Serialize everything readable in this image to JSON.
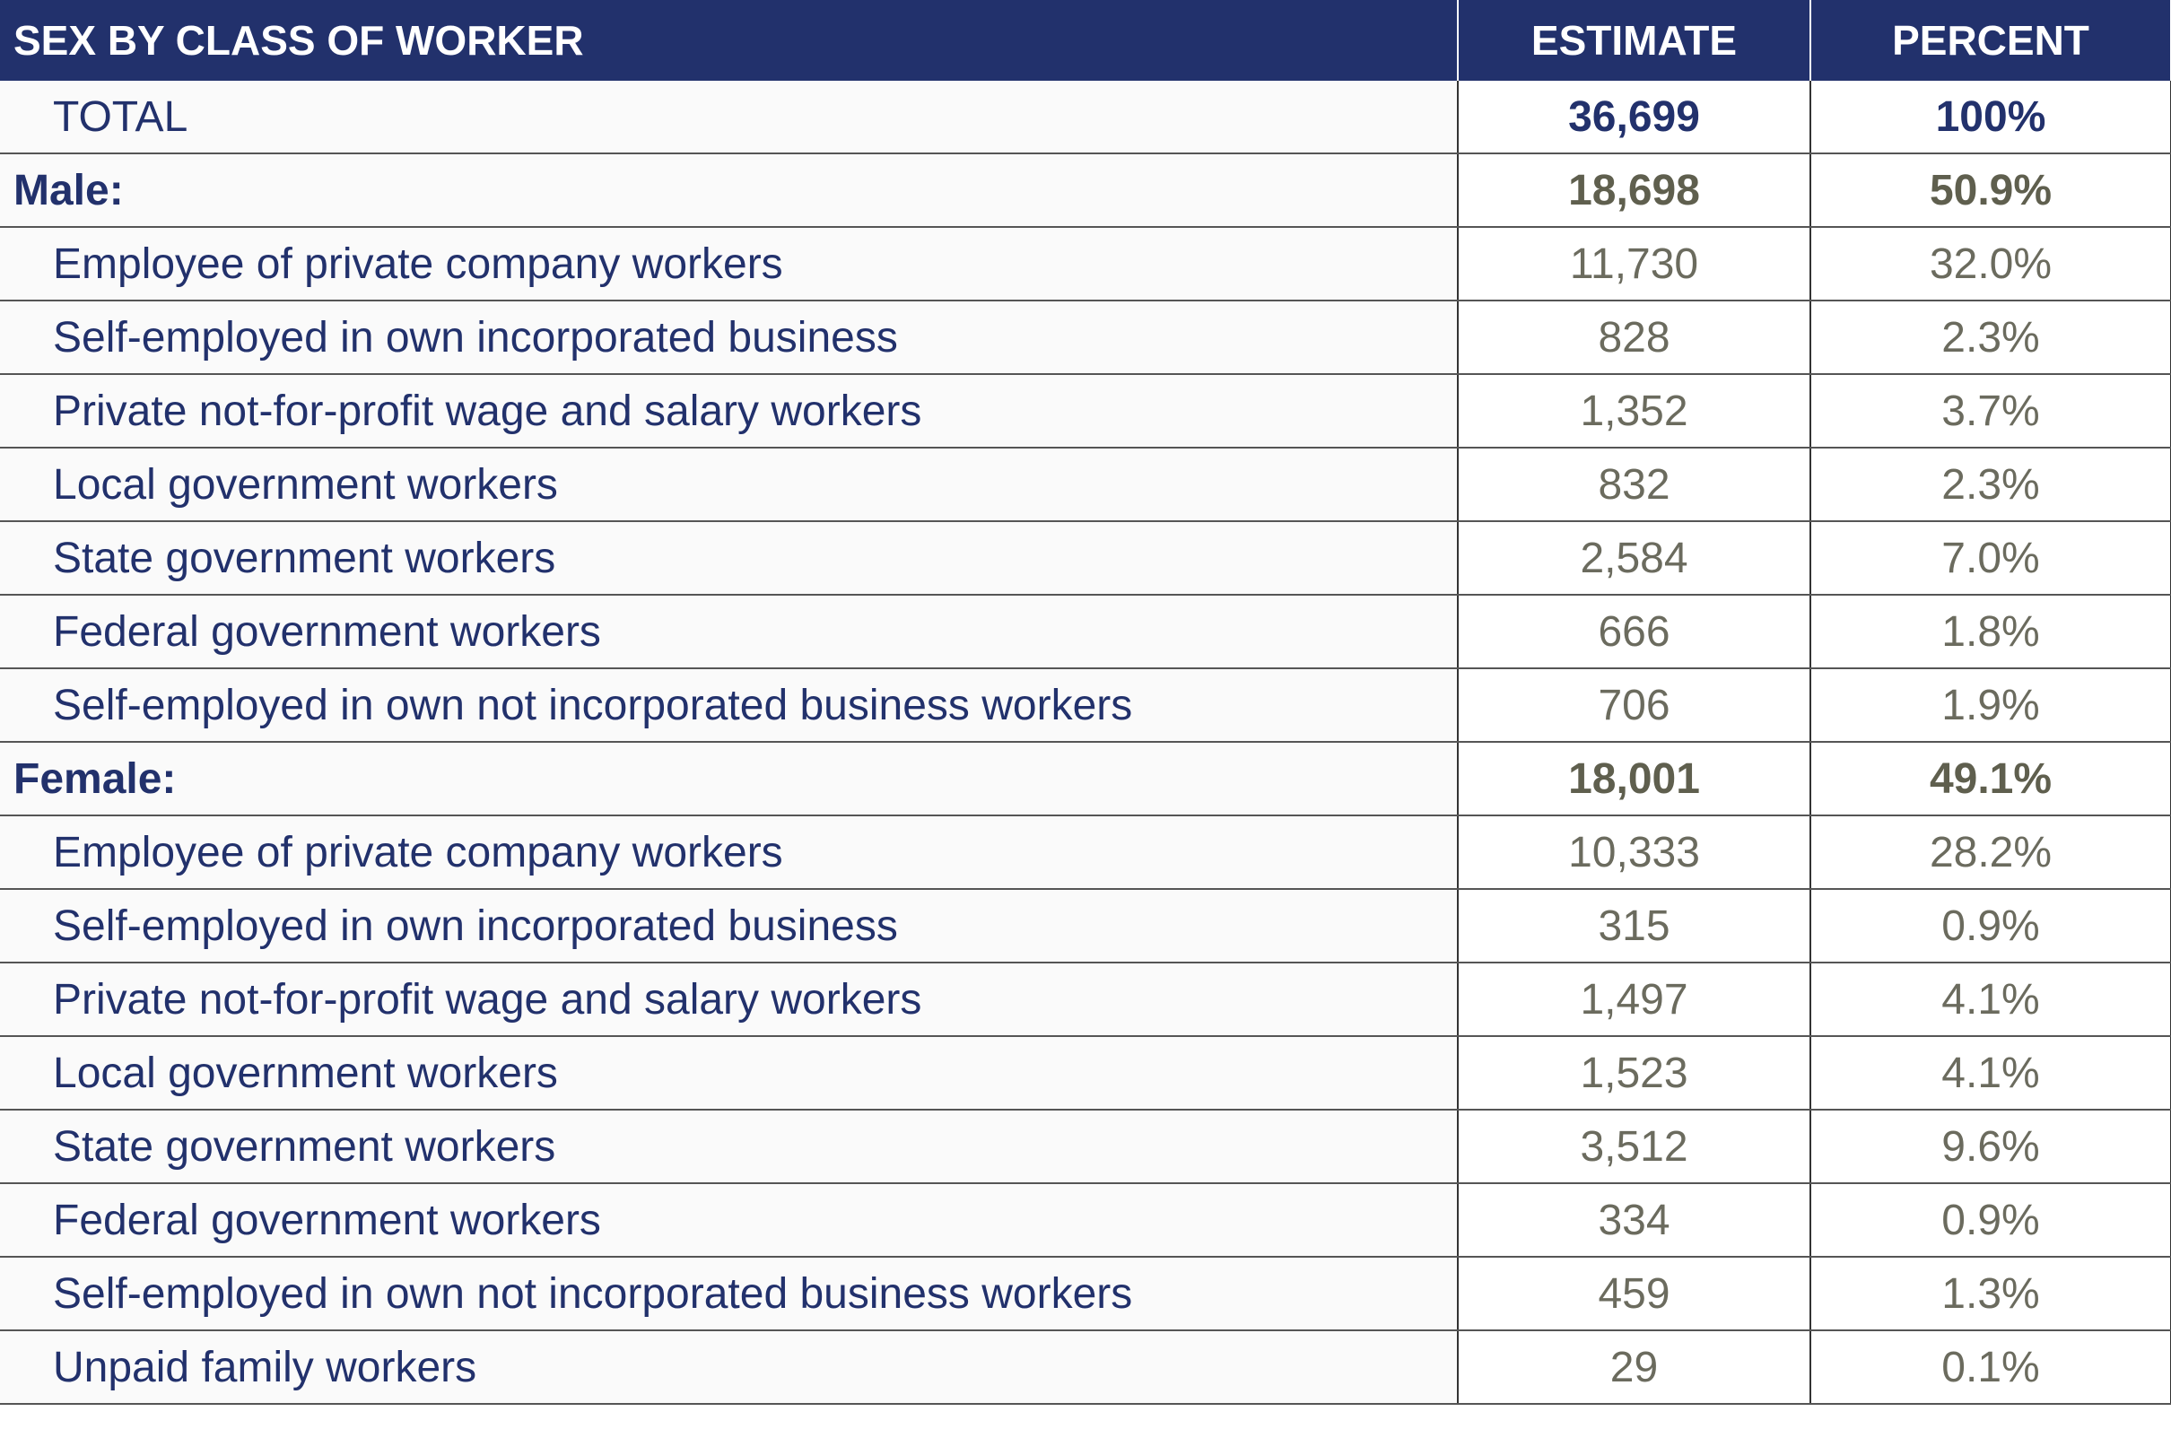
{
  "header": {
    "title": "SEX BY CLASS OF WORKER",
    "estimate": "ESTIMATE",
    "percent": "PERCENT"
  },
  "rows": [
    {
      "label": "TOTAL",
      "estimate": "36,699",
      "percent": "100%",
      "type": "total"
    },
    {
      "label": "Male:",
      "estimate": "18,698",
      "percent": "50.9%",
      "type": "group"
    },
    {
      "label": "Employee of private company workers",
      "estimate": "11,730",
      "percent": "32.0%",
      "type": "item"
    },
    {
      "label": "Self-employed in own incorporated business",
      "estimate": "828",
      "percent": "2.3%",
      "type": "item"
    },
    {
      "label": "Private not-for-profit wage and salary workers",
      "estimate": "1,352",
      "percent": "3.7%",
      "type": "item"
    },
    {
      "label": "Local government workers",
      "estimate": "832",
      "percent": "2.3%",
      "type": "item"
    },
    {
      "label": "State government workers",
      "estimate": "2,584",
      "percent": "7.0%",
      "type": "item"
    },
    {
      "label": "Federal government workers",
      "estimate": "666",
      "percent": "1.8%",
      "type": "item"
    },
    {
      "label": "Self-employed in own not incorporated business workers",
      "estimate": "706",
      "percent": "1.9%",
      "type": "item"
    },
    {
      "label": "Female:",
      "estimate": "18,001",
      "percent": "49.1%",
      "type": "group"
    },
    {
      "label": "Employee of private company workers",
      "estimate": "10,333",
      "percent": "28.2%",
      "type": "item"
    },
    {
      "label": "Self-employed in own incorporated business",
      "estimate": "315",
      "percent": "0.9%",
      "type": "item"
    },
    {
      "label": "Private not-for-profit wage and salary workers",
      "estimate": "1,497",
      "percent": "4.1%",
      "type": "item"
    },
    {
      "label": "Local government workers",
      "estimate": "1,523",
      "percent": "4.1%",
      "type": "item"
    },
    {
      "label": "State government workers",
      "estimate": "3,512",
      "percent": "9.6%",
      "type": "item"
    },
    {
      "label": "Federal government workers",
      "estimate": "334",
      "percent": "0.9%",
      "type": "item"
    },
    {
      "label": "Self-employed in own not incorporated business workers",
      "estimate": "459",
      "percent": "1.3%",
      "type": "item"
    },
    {
      "label": "Unpaid family workers",
      "estimate": "29",
      "percent": "0.1%",
      "type": "item"
    }
  ]
}
